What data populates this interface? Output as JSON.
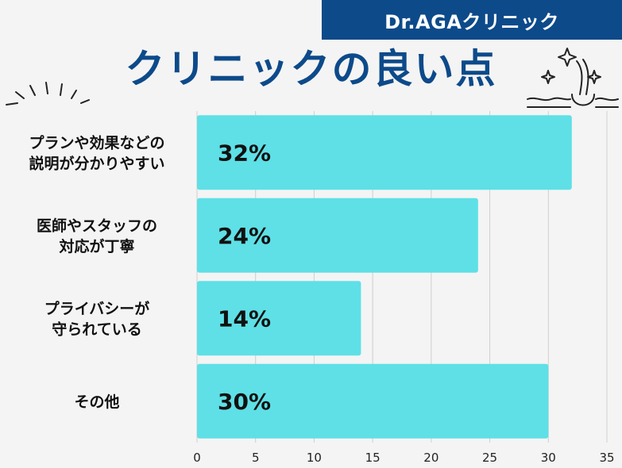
{
  "brand": {
    "name": "Dr.AGAクリニック"
  },
  "title": "クリニックの良い点",
  "colors": {
    "banner": "#0d4a8a",
    "title": "#0d4a8a",
    "bar": "#5ee0e6",
    "grid": "#cfcfcf",
    "background": "#f4f4f4"
  },
  "decorations": [
    "sparkle-lines-icon",
    "hair-follicle-sparkle-icon"
  ],
  "chart_data": {
    "type": "bar",
    "orientation": "horizontal",
    "title": "クリニックの良い点",
    "categories": [
      [
        "プラン や効果などの",
        "説明が分かりやすい"
      ],
      [
        "医師やスタッフの",
        "対応が丁寧"
      ],
      [
        "プライバシーが",
        "守られている"
      ],
      [
        "その他"
      ]
    ],
    "values": [
      32,
      24,
      14,
      30
    ],
    "value_labels": [
      "32%",
      "24%",
      "14%",
      "30%"
    ],
    "xlim": [
      0,
      35
    ],
    "xticks": [
      0,
      5,
      10,
      15,
      20,
      25,
      30,
      35
    ],
    "grid": true
  }
}
